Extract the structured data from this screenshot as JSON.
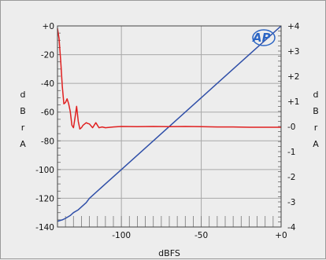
{
  "chart_data": {
    "type": "line",
    "x_label": "dBFS",
    "y_left_label": [
      "d",
      "B",
      "r",
      "A"
    ],
    "y_right_label": [
      "d",
      "B",
      "r",
      "A"
    ],
    "xlim": [
      -140,
      0
    ],
    "ylim_left": [
      -140,
      0
    ],
    "ylim_right": [
      -4,
      4
    ],
    "x_ticks": [
      "-100",
      "-50",
      "+0"
    ],
    "x_tick_values": [
      -100,
      -50,
      0
    ],
    "y_left_ticks": [
      "+0",
      "-20",
      "-40",
      "-60",
      "-80",
      "-100",
      "-120",
      "-140"
    ],
    "y_left_tick_values": [
      0,
      -20,
      -40,
      -60,
      -80,
      -100,
      -120,
      -140
    ],
    "y_right_ticks": [
      "+4",
      "+3",
      "+2",
      "+1",
      "-0",
      "-1",
      "-2",
      "-3",
      "-4"
    ],
    "y_right_tick_values": [
      4,
      3,
      2,
      1,
      0,
      -1,
      -2,
      -3,
      -4
    ],
    "grid": true,
    "logo_text": "AP",
    "series": [
      {
        "axis": "left",
        "color": "#2f4fa8",
        "x": [
          -140,
          -137,
          -135,
          -132,
          -130,
          -127,
          -125,
          -122,
          -120,
          -110,
          -100,
          -80,
          -60,
          -40,
          -20,
          0
        ],
        "y": [
          -136,
          -135,
          -134,
          -132,
          -130,
          -128,
          -126,
          -123,
          -120,
          -110,
          -100,
          -80,
          -60,
          -40,
          -20,
          0
        ]
      },
      {
        "axis": "right",
        "color": "#e02020",
        "x": [
          -140,
          -139,
          -138,
          -137,
          -136,
          -135,
          -134,
          -133,
          -132,
          -131,
          -130,
          -129,
          -128,
          -127,
          -126,
          -125,
          -124,
          -123,
          -122,
          -121,
          -120,
          -118,
          -116,
          -114,
          -112,
          -110,
          -105,
          -100,
          -90,
          -80,
          -70,
          -60,
          -50,
          -40,
          -30,
          -20,
          -10,
          0
        ],
        "y": [
          3.9,
          3.5,
          2.6,
          1.6,
          0.9,
          0.95,
          1.1,
          0.9,
          0.6,
          0.05,
          -0.05,
          0.35,
          0.8,
          0.2,
          -0.1,
          -0.05,
          0.05,
          0.1,
          0.15,
          0.12,
          0.1,
          -0.05,
          0.15,
          -0.05,
          -0.02,
          -0.05,
          -0.02,
          0.0,
          -0.01,
          0.0,
          -0.01,
          0.0,
          -0.01,
          -0.02,
          -0.02,
          -0.03,
          -0.03,
          -0.03
        ]
      }
    ]
  }
}
